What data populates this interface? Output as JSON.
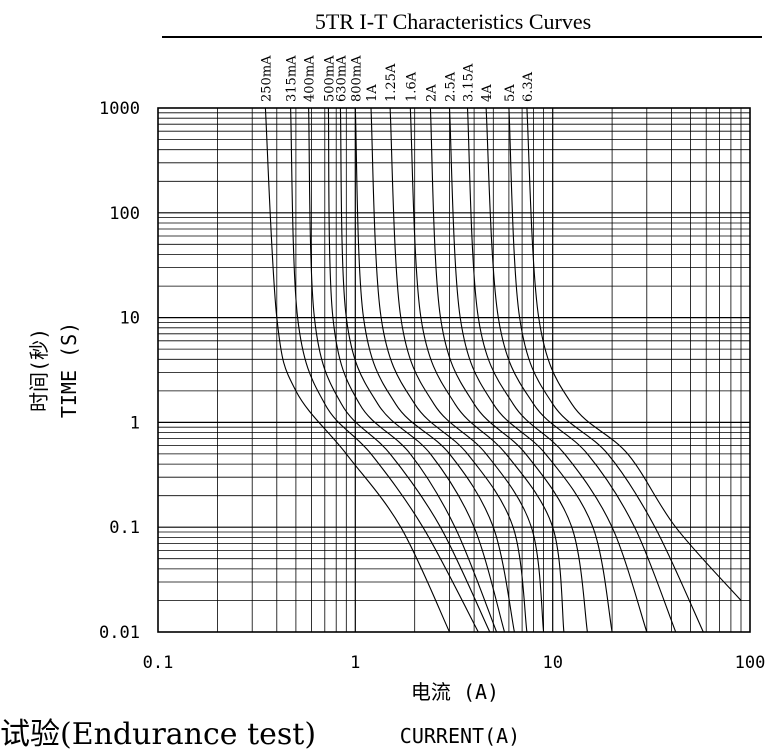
{
  "page": {
    "footer_text": "试验(Endurance test)"
  },
  "chart_data": {
    "type": "line",
    "title": "5TR I-T Characteristics Curves",
    "xlabel_cn": "电流 (A)",
    "xlabel_en": "CURRENT(A)",
    "ylabel_cn": "时间(秒)",
    "ylabel_en": "TIME (S)",
    "x_scale": "log",
    "y_scale": "log",
    "xlim": [
      0.1,
      100
    ],
    "ylim": [
      0.01,
      1000
    ],
    "x_ticks": [
      {
        "value": 0.1,
        "label": "0.1"
      },
      {
        "value": 1,
        "label": "1"
      },
      {
        "value": 10,
        "label": "10"
      },
      {
        "value": 100,
        "label": "100"
      }
    ],
    "y_ticks": [
      {
        "value": 1000,
        "label": "1000"
      },
      {
        "value": 100,
        "label": "100"
      },
      {
        "value": 10,
        "label": "10"
      },
      {
        "value": 1,
        "label": "1"
      },
      {
        "value": 0.1,
        "label": "0.1"
      },
      {
        "value": 0.01,
        "label": "0.01"
      }
    ],
    "grid": true,
    "legend": "none",
    "series": [
      {
        "name": "250mA",
        "points": [
          [
            0.35,
            1000
          ],
          [
            0.4,
            10
          ],
          [
            0.5,
            2
          ],
          [
            0.9,
            0.5
          ],
          [
            1.7,
            0.1
          ],
          [
            3.0,
            0.01
          ]
        ]
      },
      {
        "name": "315mA",
        "points": [
          [
            0.47,
            1000
          ],
          [
            0.51,
            10
          ],
          [
            0.7,
            1.5
          ],
          [
            1.2,
            0.5
          ],
          [
            2.2,
            0.1
          ],
          [
            4.2,
            0.01
          ]
        ]
      },
      {
        "name": "400mA",
        "points": [
          [
            0.58,
            1000
          ],
          [
            0.62,
            10
          ],
          [
            0.85,
            1.5
          ],
          [
            1.5,
            0.5
          ],
          [
            2.7,
            0.1
          ],
          [
            4.8,
            0.01
          ]
        ]
      },
      {
        "name": "500mA",
        "points": [
          [
            0.73,
            1000
          ],
          [
            0.77,
            10
          ],
          [
            1.05,
            1.5
          ],
          [
            1.9,
            0.5
          ],
          [
            3.2,
            0.1
          ],
          [
            5.2,
            0.01
          ]
        ]
      },
      {
        "name": "630mA",
        "points": [
          [
            0.84,
            1000
          ],
          [
            0.9,
            10
          ],
          [
            1.3,
            1.5
          ],
          [
            2.4,
            0.5
          ],
          [
            4.0,
            0.1
          ],
          [
            5.7,
            0.01
          ]
        ]
      },
      {
        "name": "800mA",
        "points": [
          [
            1.0,
            1000
          ],
          [
            1.1,
            10
          ],
          [
            1.6,
            1.5
          ],
          [
            3.0,
            0.5
          ],
          [
            5.0,
            0.1
          ],
          [
            6.4,
            0.01
          ]
        ]
      },
      {
        "name": "1A",
        "points": [
          [
            1.2,
            1000
          ],
          [
            1.35,
            10
          ],
          [
            2.0,
            1.5
          ],
          [
            3.7,
            0.5
          ],
          [
            6.3,
            0.1
          ],
          [
            7.4,
            0.01
          ]
        ]
      },
      {
        "name": "1.25A",
        "points": [
          [
            1.5,
            1000
          ],
          [
            1.7,
            10
          ],
          [
            2.5,
            1.5
          ],
          [
            4.6,
            0.5
          ],
          [
            7.8,
            0.1
          ],
          [
            9.0,
            0.01
          ]
        ]
      },
      {
        "name": "1.6A",
        "points": [
          [
            1.9,
            1000
          ],
          [
            2.15,
            10
          ],
          [
            3.2,
            1.5
          ],
          [
            5.8,
            0.5
          ],
          [
            10,
            0.1
          ],
          [
            11.4,
            0.01
          ]
        ]
      },
      {
        "name": "2A",
        "points": [
          [
            2.4,
            1000
          ],
          [
            2.7,
            10
          ],
          [
            4.0,
            1.5
          ],
          [
            7.3,
            0.5
          ],
          [
            12.5,
            0.1
          ],
          [
            15,
            0.01
          ]
        ]
      },
      {
        "name": "2.5A",
        "points": [
          [
            3.0,
            1000
          ],
          [
            3.4,
            10
          ],
          [
            5.0,
            1.5
          ],
          [
            9.2,
            0.5
          ],
          [
            16,
            0.1
          ],
          [
            20,
            0.01
          ]
        ]
      },
      {
        "name": "3.15A",
        "points": [
          [
            3.7,
            1000
          ],
          [
            4.2,
            10
          ],
          [
            6.3,
            1.5
          ],
          [
            11.5,
            0.5
          ],
          [
            20,
            0.1
          ],
          [
            30,
            0.01
          ]
        ]
      },
      {
        "name": "4A",
        "points": [
          [
            4.6,
            1000
          ],
          [
            5.3,
            10
          ],
          [
            8.0,
            1.5
          ],
          [
            15,
            0.5
          ],
          [
            26,
            0.1
          ],
          [
            42,
            0.01
          ]
        ]
      },
      {
        "name": "5A",
        "points": [
          [
            6.0,
            1000
          ],
          [
            6.8,
            10
          ],
          [
            10,
            1.5
          ],
          [
            19,
            0.5
          ],
          [
            33,
            0.1
          ],
          [
            58,
            0.01
          ]
        ]
      },
      {
        "name": "6.3A",
        "points": [
          [
            7.4,
            1000
          ],
          [
            8.5,
            10
          ],
          [
            12.5,
            1.5
          ],
          [
            24,
            0.5
          ],
          [
            42,
            0.1
          ],
          [
            90,
            0.02
          ]
        ]
      }
    ]
  }
}
